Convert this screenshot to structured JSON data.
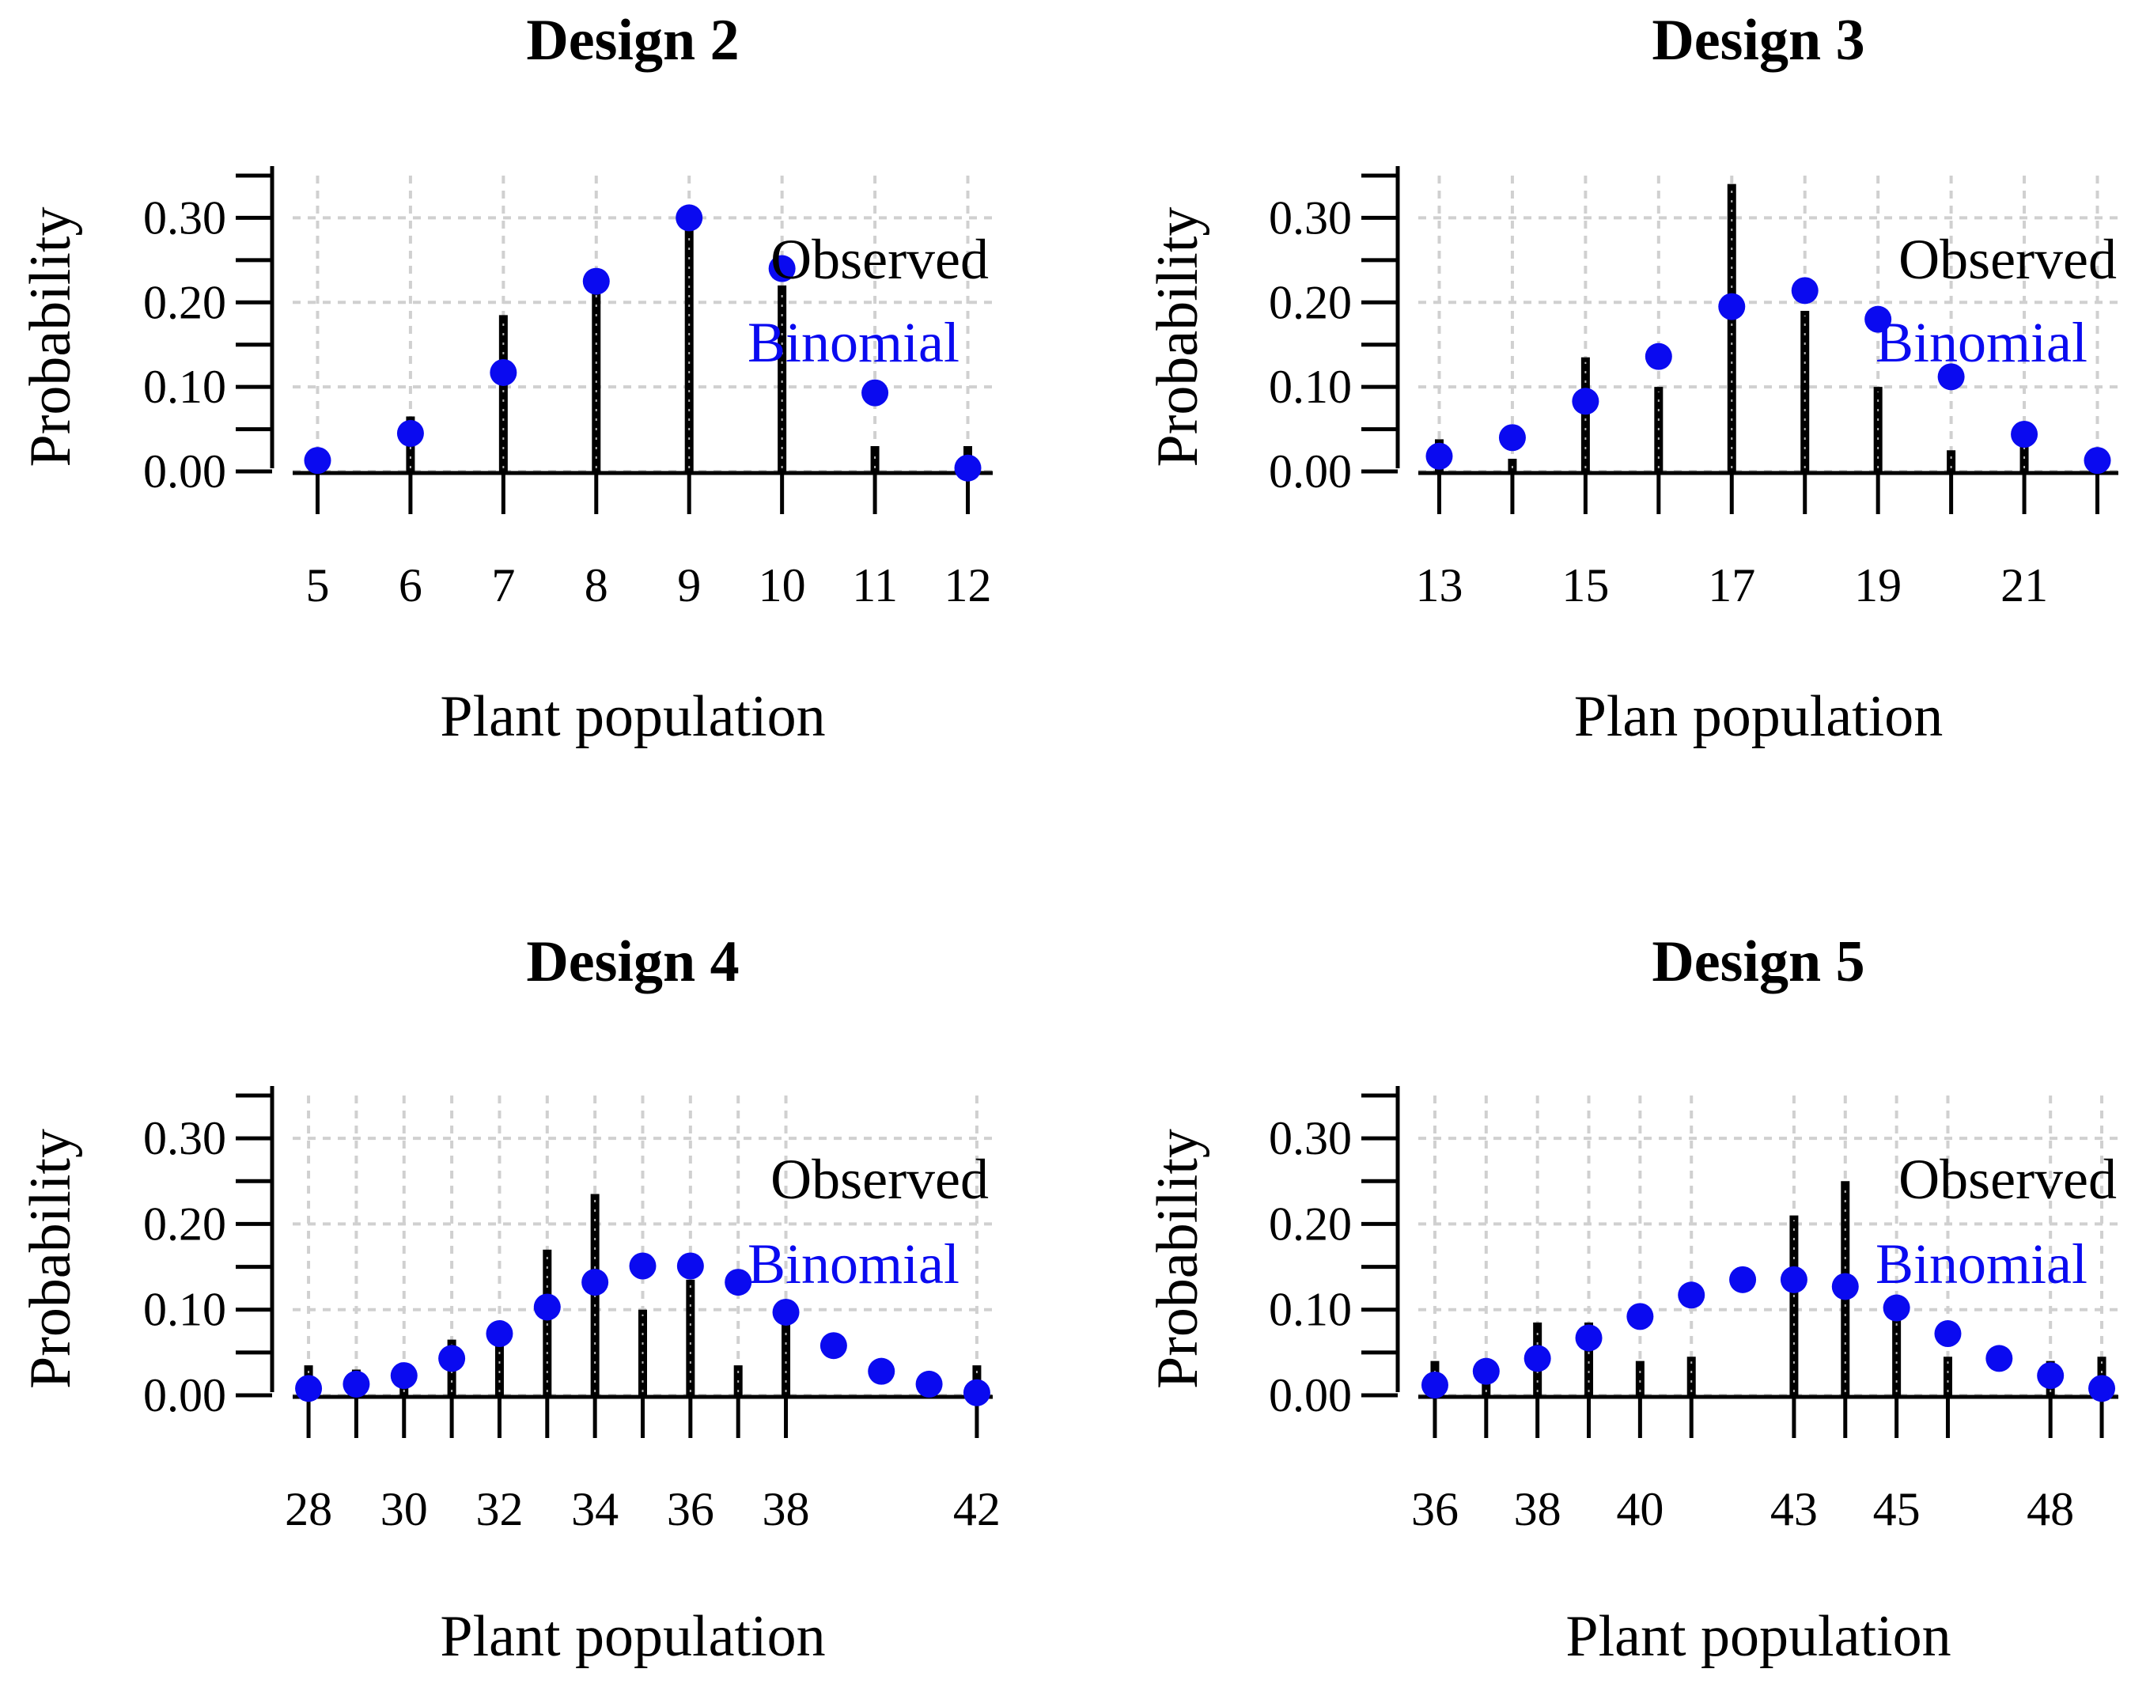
{
  "colors": {
    "observed": "#000000",
    "binomial": "#0a0af0",
    "grid": "#d0d0d0",
    "background": "#ffffff"
  },
  "chart_data": [
    {
      "type": "bar",
      "title": "Design 2",
      "xlabel": "Plant population",
      "ylabel": "Probability",
      "ylim": [
        0,
        0.35
      ],
      "xlim": [
        4.8,
        12.2
      ],
      "grid": true,
      "legend": {
        "position": "top-right",
        "observed_label": "Observed",
        "binomial_label": "Binomial"
      },
      "yticks": [
        0,
        0.1,
        0.2,
        0.3
      ],
      "ytick_labels": [
        "0.00",
        "0.10",
        "0.20",
        "0.30"
      ],
      "xticks": [
        5,
        6,
        7,
        8,
        9,
        10,
        11,
        12
      ],
      "xtick_labels": [
        "5",
        "6",
        "7",
        "8",
        "9",
        "10",
        "11",
        "12"
      ],
      "series": [
        {
          "name": "Observed",
          "style": "bar",
          "x": [
            6,
            7,
            8,
            9,
            10,
            11,
            12
          ],
          "values": [
            0.065,
            0.185,
            0.22,
            0.3,
            0.22,
            0.03,
            0.03
          ]
        },
        {
          "name": "Binomial",
          "style": "point",
          "x": [
            5,
            6,
            7,
            8,
            9,
            10,
            11,
            12
          ],
          "values": [
            0.013,
            0.045,
            0.117,
            0.225,
            0.3,
            0.24,
            0.093,
            0.004
          ]
        }
      ]
    },
    {
      "type": "bar",
      "title": "Design 3",
      "xlabel": "Plan population",
      "ylabel": "Probability",
      "ylim": [
        0,
        0.35
      ],
      "xlim": [
        12.8,
        22.2
      ],
      "grid": true,
      "legend": {
        "position": "top-right",
        "observed_label": "Observed",
        "binomial_label": "Binomial"
      },
      "yticks": [
        0,
        0.1,
        0.2,
        0.3
      ],
      "ytick_labels": [
        "0.00",
        "0.10",
        "0.20",
        "0.30"
      ],
      "xticks": [
        13,
        14,
        15,
        16,
        17,
        18,
        19,
        20,
        21,
        22
      ],
      "xtick_labels": [
        "13",
        "",
        "15",
        "",
        "17",
        "",
        "19",
        "",
        "21",
        ""
      ],
      "series": [
        {
          "name": "Observed",
          "style": "bar",
          "x": [
            13,
            14,
            15,
            16,
            17,
            18,
            19,
            20,
            21
          ],
          "values": [
            0.038,
            0.015,
            0.135,
            0.1,
            0.34,
            0.19,
            0.1,
            0.025,
            0.035
          ]
        },
        {
          "name": "Binomial",
          "style": "point",
          "x": [
            13,
            14,
            15,
            16,
            17,
            18,
            19,
            20,
            21,
            22
          ],
          "values": [
            0.018,
            0.04,
            0.083,
            0.136,
            0.195,
            0.214,
            0.18,
            0.112,
            0.044,
            0.013
          ]
        }
      ]
    },
    {
      "type": "bar",
      "title": "Design 4",
      "xlabel": "Plant population",
      "ylabel": "Probability",
      "ylim": [
        0,
        0.35
      ],
      "xlim": [
        27.8,
        42.2
      ],
      "grid": true,
      "legend": {
        "position": "top-right",
        "observed_label": "Observed",
        "binomial_label": "Binomial"
      },
      "yticks": [
        0,
        0.1,
        0.2,
        0.3
      ],
      "ytick_labels": [
        "0.00",
        "0.10",
        "0.20",
        "0.30"
      ],
      "xticks": [
        28,
        29,
        30,
        31,
        32,
        33,
        34,
        35,
        36,
        37,
        38,
        42
      ],
      "xtick_labels": [
        "28",
        "",
        "30",
        "",
        "32",
        "",
        "34",
        "",
        "36",
        "",
        "38",
        "42"
      ],
      "series": [
        {
          "name": "Observed",
          "style": "bar",
          "x": [
            28,
            29,
            30,
            31,
            32,
            33,
            34,
            35,
            36,
            37,
            38,
            42
          ],
          "values": [
            0.035,
            0.03,
            0.03,
            0.065,
            0.085,
            0.17,
            0.235,
            0.1,
            0.135,
            0.035,
            0.1,
            0.035
          ]
        },
        {
          "name": "Binomial",
          "style": "point",
          "x": [
            28,
            29,
            30,
            31,
            32,
            33,
            34,
            35,
            36,
            37,
            38,
            39,
            40,
            41,
            42
          ],
          "values": [
            0.008,
            0.013,
            0.023,
            0.043,
            0.072,
            0.103,
            0.132,
            0.151,
            0.151,
            0.132,
            0.097,
            0.058,
            0.028,
            0.013,
            0.003
          ]
        }
      ]
    },
    {
      "type": "bar",
      "title": "Design 5",
      "xlabel": "Plant population",
      "ylabel": "Probability",
      "ylim": [
        0,
        0.35
      ],
      "xlim": [
        35.8,
        49.2
      ],
      "grid": true,
      "legend": {
        "position": "top-right",
        "observed_label": "Observed",
        "binomial_label": "Binomial"
      },
      "yticks": [
        0,
        0.1,
        0.2,
        0.3
      ],
      "ytick_labels": [
        "0.00",
        "0.10",
        "0.20",
        "0.30"
      ],
      "xticks": [
        36,
        37,
        38,
        39,
        40,
        41,
        43,
        44,
        45,
        46,
        48,
        49
      ],
      "xtick_labels": [
        "36",
        "",
        "38",
        "",
        "40",
        "",
        "43",
        "",
        "45",
        "",
        "48",
        ""
      ],
      "series": [
        {
          "name": "Observed",
          "style": "bar",
          "x": [
            36,
            37,
            38,
            39,
            40,
            41,
            43,
            44,
            45,
            46,
            48,
            49
          ],
          "values": [
            0.04,
            0.035,
            0.085,
            0.085,
            0.04,
            0.045,
            0.21,
            0.25,
            0.1,
            0.045,
            0.04,
            0.045
          ]
        },
        {
          "name": "Binomial",
          "style": "point",
          "x": [
            36,
            37,
            38,
            39,
            40,
            41,
            42,
            43,
            44,
            45,
            46,
            47,
            48,
            49
          ],
          "values": [
            0.012,
            0.028,
            0.043,
            0.067,
            0.092,
            0.117,
            0.135,
            0.135,
            0.127,
            0.102,
            0.072,
            0.043,
            0.023,
            0.008
          ]
        }
      ]
    }
  ]
}
